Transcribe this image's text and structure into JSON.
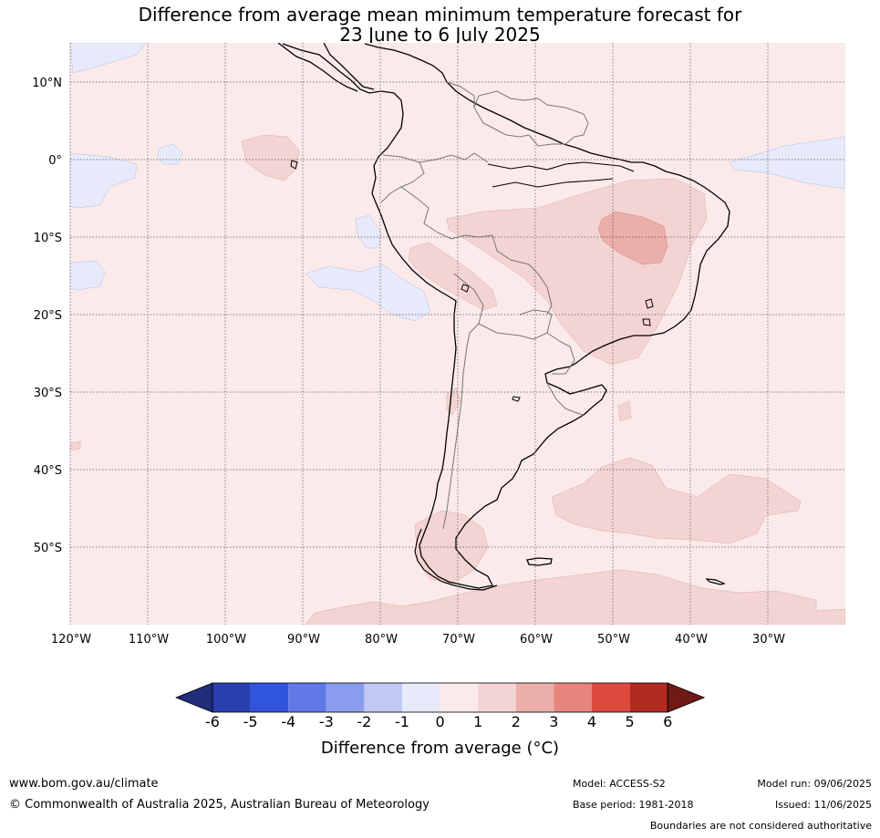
{
  "title_line1": "Difference from average mean minimum temperature forecast for",
  "title_line2": "23 June to 6 July 2025",
  "map": {
    "lat_labels": [
      "10°N",
      "0°",
      "10°S",
      "20°S",
      "30°S",
      "40°S",
      "50°S"
    ],
    "lon_labels": [
      "120°W",
      "110°W",
      "100°W",
      "90°W",
      "80°W",
      "70°W",
      "60°W",
      "50°W",
      "40°W",
      "30°W"
    ]
  },
  "colorbar": {
    "ticks": [
      "-6",
      "-5",
      "-4",
      "-3",
      "-2",
      "-1",
      "0",
      "1",
      "2",
      "3",
      "4",
      "5",
      "6"
    ],
    "colors": [
      "#1f2d7a",
      "#283fb0",
      "#3054e0",
      "#6179e6",
      "#8a9ced",
      "#c0c8f3",
      "#e6eafa",
      "#fbeaea",
      "#f4d4d2",
      "#ebaea9",
      "#e7857d",
      "#dc4a3e",
      "#b02a20",
      "#701a15"
    ],
    "label": "Difference from average (°C)"
  },
  "footer": {
    "url": "www.bom.gov.au/climate",
    "copyright": "© Commonwealth of Australia 2025, Australian Bureau of Meteorology",
    "model": "Model: ACCESS-S2",
    "base_period": "Base period: 1981-2018",
    "model_run": "Model run: 09/06/2025",
    "issued": "Issued: 11/06/2025",
    "disclaimer": "Boundaries are not considered authoritative"
  }
}
